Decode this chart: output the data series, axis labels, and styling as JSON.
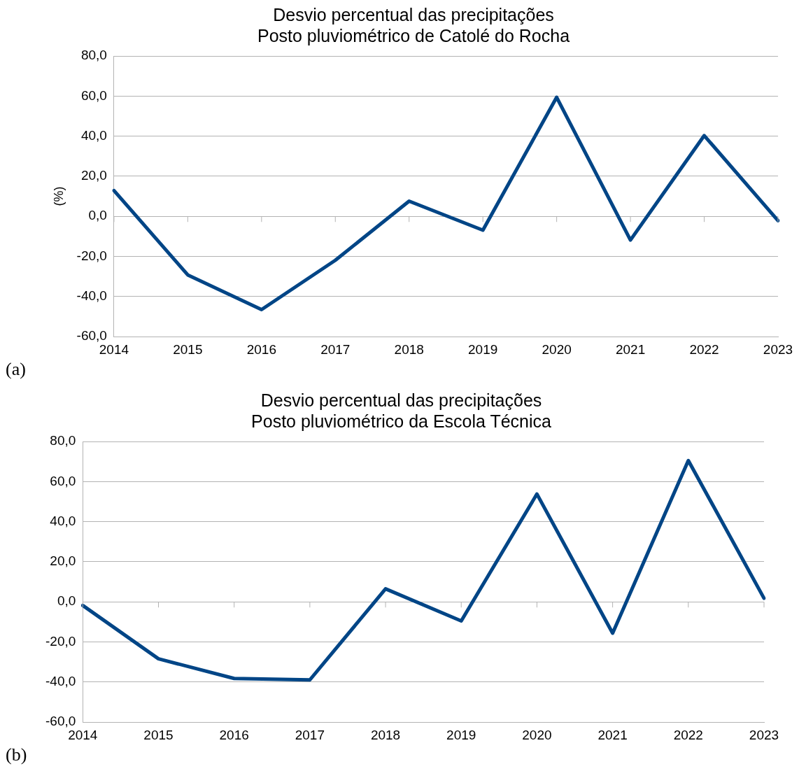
{
  "chart_data": [
    {
      "type": "line",
      "title": "Desvio percentual das precipitações",
      "subtitle": "Posto pluviométrico de Catolé do Rocha",
      "ylabel": "(%)",
      "annotations": [
        "(a)"
      ],
      "categories": [
        "2014",
        "2015",
        "2016",
        "2017",
        "2018",
        "2019",
        "2020",
        "2021",
        "2022",
        "2023"
      ],
      "series": [
        {
          "color": "#004586",
          "values": [
            12.9,
            -29.2,
            -46.5,
            -21.9,
            7.6,
            -6.9,
            59.4,
            -11.8,
            40.3,
            -2.1
          ]
        }
      ],
      "ylim": [
        -60,
        80
      ],
      "yticks": [
        {
          "value": -60,
          "label": "-60,0"
        },
        {
          "value": -40,
          "label": "-40,0"
        },
        {
          "value": -20,
          "label": "-20,0"
        },
        {
          "value": 0,
          "label": "0,0"
        },
        {
          "value": 20,
          "label": "20,0"
        },
        {
          "value": 40,
          "label": "40,0"
        },
        {
          "value": 60,
          "label": "60,0"
        },
        {
          "value": 80,
          "label": "80,0"
        }
      ],
      "grid": "y",
      "legend": false,
      "marker": "none",
      "line_style": "solid"
    },
    {
      "type": "line",
      "title": "Desvio percentual das precipitações",
      "subtitle": "Posto pluviométrico da Escola Técnica",
      "annotations": [
        "(b)"
      ],
      "categories": [
        "2014",
        "2015",
        "2016",
        "2017",
        "2018",
        "2019",
        "2020",
        "2021",
        "2022",
        "2023"
      ],
      "series": [
        {
          "color": "#004586",
          "values": [
            -1.8,
            -28.4,
            -38.2,
            -38.9,
            6.5,
            -9.5,
            53.8,
            -15.6,
            70.5,
            1.8
          ]
        }
      ],
      "ylim": [
        -60,
        80
      ],
      "yticks": [
        {
          "value": -60,
          "label": "-60,0"
        },
        {
          "value": -40,
          "label": "-40,0"
        },
        {
          "value": -20,
          "label": "-20,0"
        },
        {
          "value": 0,
          "label": "0,0"
        },
        {
          "value": 20,
          "label": "20,0"
        },
        {
          "value": 40,
          "label": "40,0"
        },
        {
          "value": 60,
          "label": "60,0"
        },
        {
          "value": 80,
          "label": "80,0"
        }
      ],
      "grid": "y",
      "legend": false,
      "marker": "none",
      "line_style": "solid"
    }
  ]
}
